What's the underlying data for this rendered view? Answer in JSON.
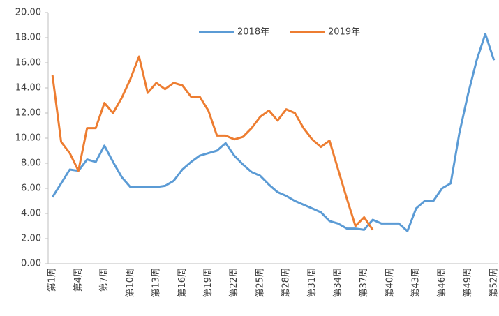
{
  "chart_data": {
    "type": "line",
    "categories": [
      "第1周",
      null,
      null,
      "第4周",
      null,
      null,
      "第7周",
      null,
      null,
      "第10周",
      null,
      null,
      "第13周",
      null,
      null,
      "第16周",
      null,
      null,
      "第19周",
      null,
      null,
      "第22周",
      null,
      null,
      "第25周",
      null,
      null,
      "第28周",
      null,
      null,
      "第31周",
      null,
      null,
      "第34周",
      null,
      null,
      "第37周",
      null,
      null,
      "第40周",
      null,
      null,
      "第43周",
      null,
      null,
      "第46周",
      null,
      null,
      "第49周",
      null,
      null,
      "第52周"
    ],
    "series": [
      {
        "name": "2018年",
        "color": "#5b9bd5",
        "values": [
          5.3,
          6.4,
          7.5,
          7.4,
          8.3,
          8.1,
          9.4,
          8.1,
          6.9,
          6.1,
          6.1,
          6.1,
          6.1,
          6.2,
          6.6,
          7.5,
          8.1,
          8.6,
          8.8,
          9.0,
          9.6,
          8.6,
          7.9,
          7.3,
          7.0,
          6.3,
          5.7,
          5.4,
          5.0,
          4.7,
          4.4,
          4.1,
          3.4,
          3.2,
          2.8,
          2.8,
          2.7,
          3.5,
          3.2,
          3.2,
          3.2,
          2.6,
          4.4,
          5.0,
          5.0,
          6.0,
          6.4,
          10.4,
          13.5,
          16.2,
          18.3,
          16.2
        ]
      },
      {
        "name": "2019年",
        "color": "#ed7d31",
        "values": [
          15.0,
          9.7,
          8.8,
          7.4,
          10.8,
          10.8,
          12.8,
          12.0,
          13.2,
          14.7,
          16.5,
          13.6,
          14.4,
          13.9,
          14.4,
          14.2,
          13.3,
          13.3,
          12.2,
          10.2,
          10.2,
          9.9,
          10.1,
          10.8,
          11.7,
          12.2,
          11.4,
          12.3,
          12.0,
          10.8,
          9.9,
          9.3,
          9.8,
          7.5,
          5.2,
          3.0,
          3.7,
          2.7,
          null,
          null,
          null,
          null,
          null,
          null,
          null,
          null,
          null,
          null,
          null,
          null,
          null,
          null
        ]
      }
    ],
    "ylim": [
      0,
      20
    ],
    "yticks": [
      {
        "value": 0,
        "label": "0.00"
      },
      {
        "value": 2,
        "label": "2.00"
      },
      {
        "value": 4,
        "label": "4.00"
      },
      {
        "value": 6,
        "label": "6.00"
      },
      {
        "value": 8,
        "label": "8.00"
      },
      {
        "value": 10,
        "label": "10.00"
      },
      {
        "value": 12,
        "label": "12.00"
      },
      {
        "value": 14,
        "label": "14.00"
      },
      {
        "value": 16,
        "label": "16.00"
      },
      {
        "value": 18,
        "label": "18.00"
      },
      {
        "value": 20,
        "label": "20.00"
      }
    ],
    "legend": "top",
    "grid": false
  }
}
